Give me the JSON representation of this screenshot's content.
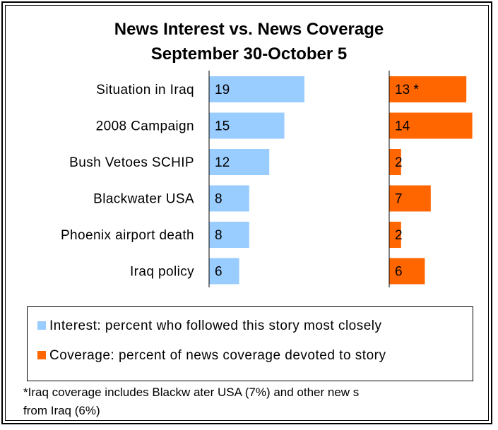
{
  "chart_data": {
    "type": "bar",
    "title": "News Interest vs. News Coverage",
    "subtitle": "September 30-October 5",
    "categories": [
      "Situation in Iraq",
      "2008 Campaign",
      "Bush Vetoes SCHIP",
      "Blackwater USA",
      "Phoenix airport death",
      "Iraq policy"
    ],
    "series": [
      {
        "name": "Interest: percent who followed this story most closely",
        "values": [
          19,
          15,
          12,
          8,
          8,
          6
        ],
        "labels": [
          "19",
          "15",
          "12",
          "8",
          "8",
          "6"
        ],
        "color": "#99ccff"
      },
      {
        "name": "Coverage: percent of news coverage devoted to story",
        "values": [
          13,
          14,
          2,
          7,
          2,
          6
        ],
        "labels": [
          "13 *",
          "14",
          "2",
          "7",
          "2",
          "6"
        ],
        "color": "#ff6600"
      }
    ],
    "legend": "bottom",
    "grid": false
  },
  "footnote": {
    "line1": "*Iraq coverage includes Blackw ater USA (7%) and other new s",
    "line2": "from Iraq (6%)"
  }
}
